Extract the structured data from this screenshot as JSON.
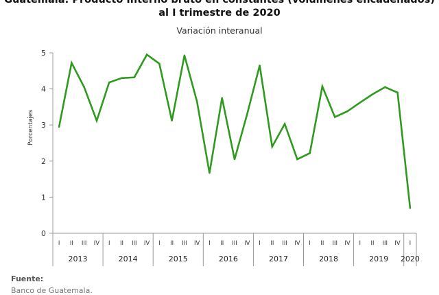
{
  "chart_data": {
    "type": "line",
    "title_line1": "Guatemala: Producto Interno bruto en constantes (volúmenes encadenados)",
    "title_line2": "al I trimestre de 2020",
    "subtitle": "Variación interanual",
    "ylabel": "Porcentajes",
    "ylim": [
      0,
      5
    ],
    "yticks": [
      "0",
      "1",
      "2",
      "3",
      "4",
      "5"
    ],
    "quarter_labels": [
      "I",
      "II",
      "III",
      "IV"
    ],
    "years": [
      "2013",
      "2014",
      "2015",
      "2016",
      "2017",
      "2018",
      "2019",
      "2020"
    ],
    "x": [
      "2013-I",
      "2013-II",
      "2013-III",
      "2013-IV",
      "2014-I",
      "2014-II",
      "2014-III",
      "2014-IV",
      "2015-I",
      "2015-II",
      "2015-III",
      "2015-IV",
      "2016-I",
      "2016-II",
      "2016-III",
      "2016-IV",
      "2017-I",
      "2017-II",
      "2017-III",
      "2017-IV",
      "2018-I",
      "2018-II",
      "2018-III",
      "2018-IV",
      "2019-I",
      "2019-II",
      "2019-III",
      "2019-IV",
      "2020-I"
    ],
    "series": [
      {
        "color": "#2e9a1e",
        "values": [
          2.95,
          4.72,
          4.05,
          3.12,
          4.18,
          4.3,
          4.32,
          4.95,
          4.7,
          3.12,
          4.93,
          3.65,
          1.67,
          3.75,
          2.05,
          3.3,
          4.65,
          2.4,
          3.03,
          2.05,
          2.22,
          4.07,
          3.22,
          3.38,
          3.62,
          3.85,
          4.05,
          3.9,
          0.7
        ]
      }
    ],
    "grid": false
  },
  "footer": {
    "source_label": "Fuente:",
    "source_text": "Banco de Guatemala."
  }
}
